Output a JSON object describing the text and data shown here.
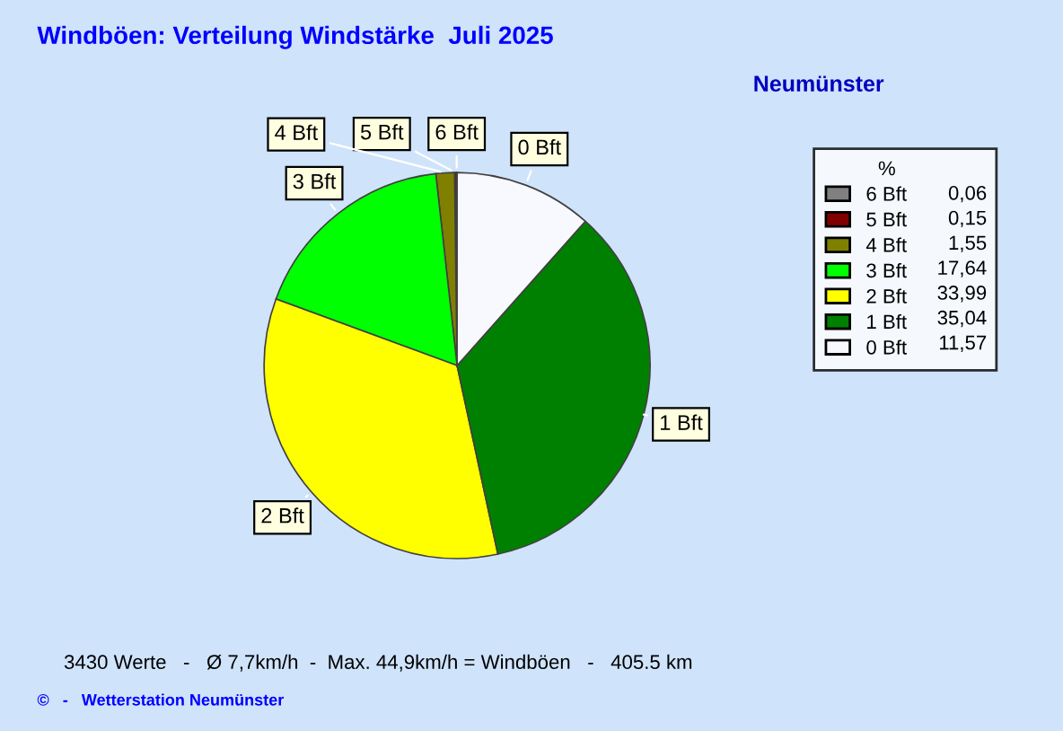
{
  "chart_data": {
    "type": "pie",
    "title": "Windböen: Verteilung Windstärke  Juli 2025",
    "subtitle": "Neumünster",
    "legend_title": "%",
    "categories": [
      "6 Bft",
      "5 Bft",
      "4 Bft",
      "3 Bft",
      "2 Bft",
      "1 Bft",
      "0 Bft"
    ],
    "values": [
      0.06,
      0.15,
      1.55,
      17.64,
      33.99,
      35.04,
      11.57
    ],
    "value_labels": [
      "0,06",
      "0,15",
      "1,55",
      "17,64",
      "33,99",
      "35,04",
      "11,57"
    ],
    "colors": [
      "#808080",
      "#800000",
      "#808000",
      "#00ff00",
      "#ffff00",
      "#008000",
      "#f8f8ff"
    ],
    "legend": "top right",
    "annotations": [
      "3430 Werte   -   Ø 7,7km/h  -  Max. 44,9km/h = Windböen   -   405.5 km",
      "©   -   Wetterstation Neumünster"
    ]
  }
}
